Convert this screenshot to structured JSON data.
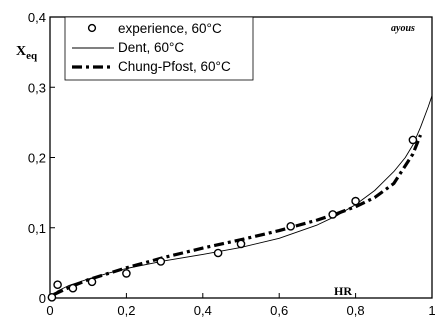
{
  "chart_data": {
    "type": "line",
    "annotation": "ayous",
    "xlabel": "HR",
    "ylabel": {
      "main": "X",
      "sub": "eq"
    },
    "xlim": [
      0,
      1
    ],
    "ylim": [
      0,
      0.4
    ],
    "x_ticks": [
      "0",
      "0,2",
      "0,4",
      "0,6",
      "0,8",
      "1"
    ],
    "x_tick_values": [
      0,
      0.2,
      0.4,
      0.6,
      0.8,
      1.0
    ],
    "y_ticks": [
      "0",
      "0,1",
      "0,2",
      "0,3",
      "0,4"
    ],
    "y_tick_values": [
      0,
      0.1,
      0.2,
      0.3,
      0.4
    ],
    "grid": false,
    "legend_position": "top-left",
    "series": [
      {
        "name": "experience, 60°C",
        "style": "markers",
        "color": "#000000",
        "x": [
          0.005,
          0.02,
          0.06,
          0.11,
          0.2,
          0.29,
          0.44,
          0.5,
          0.63,
          0.74,
          0.8,
          0.95
        ],
        "y": [
          0.001,
          0.019,
          0.014,
          0.023,
          0.035,
          0.052,
          0.064,
          0.077,
          0.102,
          0.119,
          0.138,
          0.225
        ]
      },
      {
        "name": "Dent, 60°C",
        "style": "thin-solid",
        "color": "#000000",
        "x": [
          0.0,
          0.02,
          0.05,
          0.1,
          0.15,
          0.2,
          0.3,
          0.4,
          0.5,
          0.6,
          0.7,
          0.75,
          0.8,
          0.85,
          0.9,
          0.93,
          0.95,
          0.97,
          0.99,
          1.0
        ],
        "y": [
          0.0,
          0.01,
          0.018,
          0.027,
          0.035,
          0.042,
          0.053,
          0.062,
          0.072,
          0.085,
          0.104,
          0.117,
          0.133,
          0.153,
          0.18,
          0.2,
          0.218,
          0.243,
          0.272,
          0.288
        ]
      },
      {
        "name": "Chung-Pfost, 60°C",
        "style": "thick-dash-dot",
        "color": "#000000",
        "x": [
          0.01,
          0.05,
          0.1,
          0.2,
          0.3,
          0.4,
          0.5,
          0.6,
          0.7,
          0.75,
          0.8,
          0.85,
          0.9,
          0.95,
          0.97
        ],
        "y": [
          0.005,
          0.015,
          0.026,
          0.043,
          0.058,
          0.071,
          0.083,
          0.096,
          0.111,
          0.12,
          0.13,
          0.143,
          0.163,
          0.205,
          0.232
        ]
      }
    ]
  }
}
